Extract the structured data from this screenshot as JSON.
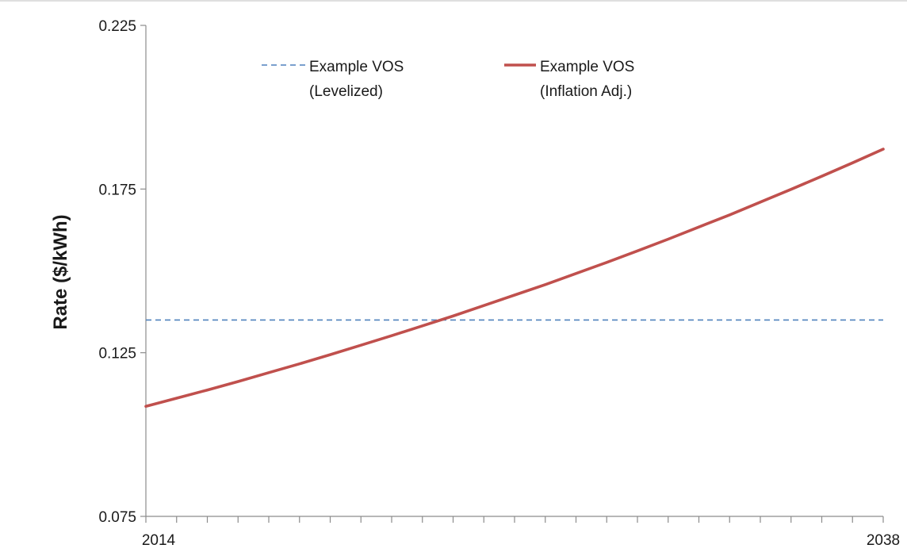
{
  "chart_data": {
    "type": "line",
    "title": "",
    "xlabel": "",
    "ylabel": "Rate ($/kWh)",
    "xlim": [
      2014,
      2038
    ],
    "ylim": [
      0.075,
      0.225
    ],
    "x_tick_labels": [
      "2014",
      "2038"
    ],
    "y_tick_labels": [
      "0.075",
      "0.125",
      "0.175",
      "0.225"
    ],
    "y_ticks": [
      0.075,
      0.125,
      0.175,
      0.225
    ],
    "grid": false,
    "legend_position": "top",
    "series": [
      {
        "name": "Example VOS (Levelized)",
        "legend_lines": [
          "Example VOS",
          "(Levelized)"
        ],
        "style": "dashed",
        "color": "#4f81bd",
        "x": [
          2014,
          2038
        ],
        "y": [
          0.135,
          0.135
        ]
      },
      {
        "name": "Example VOS (Inflation Adj.)",
        "legend_lines": [
          "Example VOS",
          "(Inflation Adj.)"
        ],
        "style": "solid",
        "color": "#c0504d",
        "x": [
          2014,
          2015,
          2016,
          2017,
          2018,
          2019,
          2020,
          2021,
          2022,
          2023,
          2024,
          2025,
          2026,
          2027,
          2028,
          2029,
          2030,
          2031,
          2032,
          2033,
          2034,
          2035,
          2036,
          2037,
          2038
        ],
        "y": [
          0.1086,
          0.1111,
          0.1136,
          0.1162,
          0.1189,
          0.1216,
          0.1244,
          0.1273,
          0.1302,
          0.1332,
          0.1362,
          0.1394,
          0.1426,
          0.1458,
          0.1492,
          0.1526,
          0.1561,
          0.1597,
          0.1634,
          0.1671,
          0.171,
          0.1749,
          0.1789,
          0.183,
          0.1872
        ]
      }
    ]
  }
}
